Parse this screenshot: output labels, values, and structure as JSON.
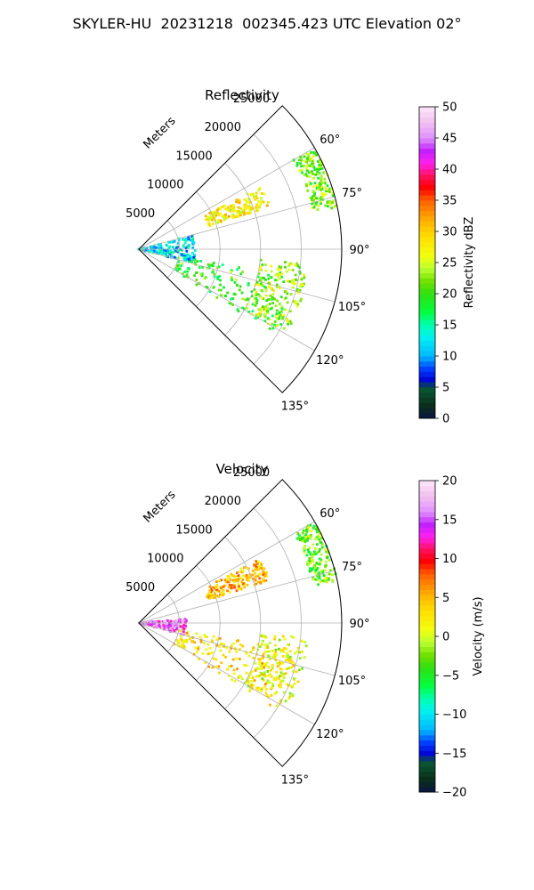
{
  "figure_title": "SKYLER-HU  20231218  002345.423 UTC Elevation 02°",
  "chart_data": [
    {
      "type": "polar",
      "title": "Reflectivity",
      "radial_label": "Meters",
      "theta_range_deg": [
        45,
        135
      ],
      "theta_ticks": [
        "60°",
        "75°",
        "90°",
        "105°",
        "120°",
        "135°"
      ],
      "r_range": [
        0,
        25000
      ],
      "r_ticks": [
        "5000",
        "10000",
        "15000",
        "20000",
        "25000"
      ],
      "grid": true,
      "colorbar": {
        "label": "Reflectivity dBZ",
        "range": [
          0,
          50
        ],
        "ticks": [
          "0",
          "5",
          "10",
          "15",
          "20",
          "25",
          "30",
          "35",
          "40",
          "45",
          "50"
        ]
      },
      "features": [
        {
          "theta_deg": [
            63,
            72
          ],
          "r": [
            9000,
            17000
          ],
          "value": 28
        },
        {
          "theta_deg": [
            60,
            78
          ],
          "r": [
            22000,
            25000
          ],
          "value": 22
        },
        {
          "theta_deg": [
            95,
            120
          ],
          "r": [
            15000,
            21000
          ],
          "value": 24
        },
        {
          "theta_deg": [
            100,
            122
          ],
          "r": [
            5000,
            20000
          ],
          "value": 20
        },
        {
          "theta_deg": [
            75,
            105
          ],
          "r": [
            0,
            7000
          ],
          "value": 12
        }
      ]
    },
    {
      "type": "polar",
      "title": "Velocity",
      "radial_label": "Meters",
      "theta_range_deg": [
        45,
        135
      ],
      "theta_ticks": [
        "60°",
        "75°",
        "90°",
        "105°",
        "120°",
        "135°"
      ],
      "r_range": [
        0,
        25000
      ],
      "r_ticks": [
        "5000",
        "10000",
        "15000",
        "20000",
        "25000"
      ],
      "grid": true,
      "colorbar": {
        "label": "Velocity (m/s)",
        "range": [
          -20,
          20
        ],
        "ticks": [
          "−20",
          "−15",
          "−10",
          "−5",
          "0",
          "5",
          "10",
          "15",
          "20"
        ]
      },
      "features": [
        {
          "theta_deg": [
            62,
            72
          ],
          "r": [
            9000,
            17000
          ],
          "value": 5
        },
        {
          "theta_deg": [
            60,
            78
          ],
          "r": [
            22000,
            25000
          ],
          "value": -3
        },
        {
          "theta_deg": [
            95,
            120
          ],
          "r": [
            15000,
            21000
          ],
          "value": 1
        },
        {
          "theta_deg": [
            100,
            122
          ],
          "r": [
            5000,
            20000
          ],
          "value": 3
        },
        {
          "theta_deg": [
            85,
            105
          ],
          "r": [
            0,
            6000
          ],
          "value": 15
        }
      ]
    }
  ]
}
